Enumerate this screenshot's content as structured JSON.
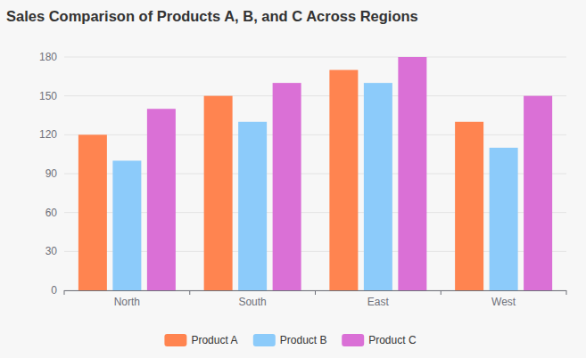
{
  "chart_data": {
    "type": "bar",
    "title": "Sales Comparison of Products A, B, and C Across Regions",
    "categories": [
      "North",
      "South",
      "East",
      "West"
    ],
    "series": [
      {
        "name": "Product A",
        "color": "#ff8450",
        "values": [
          120,
          150,
          170,
          130
        ]
      },
      {
        "name": "Product B",
        "color": "#8ccbfa",
        "values": [
          100,
          130,
          160,
          110
        ]
      },
      {
        "name": "Product C",
        "color": "#da70d6",
        "values": [
          140,
          160,
          180,
          150
        ]
      }
    ],
    "ylim": [
      0,
      180
    ],
    "yticks": [
      0,
      30,
      60,
      90,
      120,
      150,
      180
    ],
    "grid": true,
    "legend": "bottom"
  }
}
